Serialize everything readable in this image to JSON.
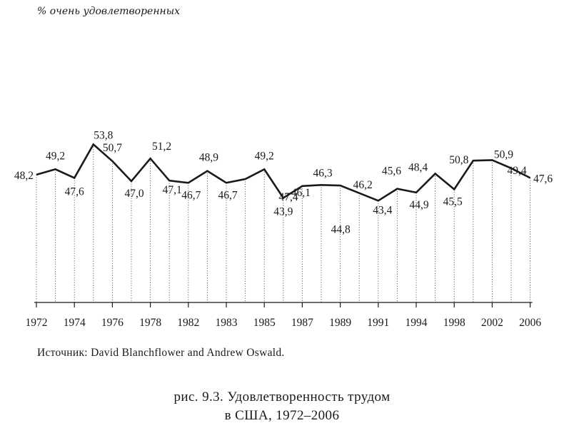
{
  "chart_data": {
    "type": "line",
    "ylabel": "% очень удовлетворенных",
    "x_tick_labels": [
      "1972",
      "1974",
      "1976",
      "1978",
      "1982",
      "1983",
      "1985",
      "1987",
      "1989",
      "1991",
      "1994",
      "1998",
      "2002",
      "2006"
    ],
    "points": [
      {
        "value": 48.2,
        "label": "48,2"
      },
      {
        "value": 49.2,
        "label": "49,2"
      },
      {
        "value": 47.6,
        "label": "47,6"
      },
      {
        "value": 53.8,
        "label": "53,8"
      },
      {
        "value": 50.7,
        "label": "50,7"
      },
      {
        "value": 47.0,
        "label": "47,0"
      },
      {
        "value": 51.2,
        "label": "51,2"
      },
      {
        "value": 47.1,
        "label": "47,1"
      },
      {
        "value": 46.7,
        "label": "46,7"
      },
      {
        "value": 48.9,
        "label": "48,9"
      },
      {
        "value": 46.7,
        "label": "46,7"
      },
      {
        "value": 47.4,
        "label": ""
      },
      {
        "value": 49.2,
        "label": "49,2"
      },
      {
        "value": 43.9,
        "label": "43,9"
      },
      {
        "value": 46.1,
        "label": "46,1"
      },
      {
        "value": 46.3,
        "label": "46,3"
      },
      {
        "value": 46.2,
        "label": "46,2"
      },
      {
        "value": 44.8,
        "label": "44,8"
      },
      {
        "value": 43.4,
        "label": "43,4"
      },
      {
        "value": 45.6,
        "label": "45,6"
      },
      {
        "value": 44.9,
        "label": "44,9"
      },
      {
        "value": 48.4,
        "label": "48,4"
      },
      {
        "value": 45.5,
        "label": "45,5"
      },
      {
        "value": 50.8,
        "label": "50,8"
      },
      {
        "value": 50.9,
        "label": "50,9"
      },
      {
        "value": 49.4,
        "label": "49,4"
      },
      {
        "value": 47.6,
        "label": "47,6"
      }
    ],
    "extra_labels": [
      "47,4"
    ],
    "line_color": "#1a1a1a",
    "grid": false
  },
  "source": "Источник: David Blanchflower and Andrew Oswald.",
  "caption": {
    "line1": "рис. 9.3. Удовлетворенность трудом",
    "line2": "в США, 1972–2006"
  }
}
